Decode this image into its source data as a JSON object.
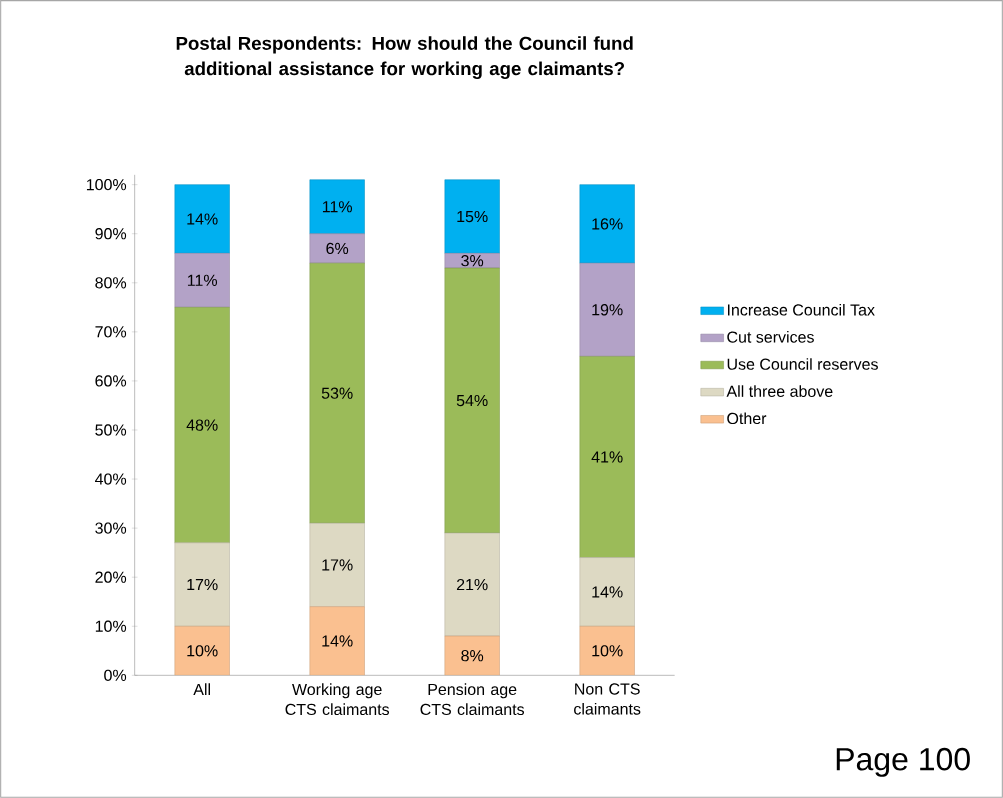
{
  "chart_data": {
    "type": "bar",
    "stacked": true,
    "title": "Postal Respondents: How should the Council fund additional assistance for working age  claimants?",
    "categories": [
      "All",
      "Working age CTS claimants",
      "Pension age CTS claimants",
      "Non CTS claimants"
    ],
    "series": [
      {
        "name": "Other",
        "color": "#fac090",
        "values": [
          10,
          14,
          8,
          10
        ],
        "value_labels": [
          "10%",
          "14%",
          "8%",
          "10%"
        ]
      },
      {
        "name": "All three above",
        "color": "#ddd9c3",
        "values": [
          17,
          17,
          21,
          14
        ],
        "value_labels": [
          "17%",
          "17%",
          "21%",
          "14%"
        ]
      },
      {
        "name": "Use Council reserves",
        "color": "#9bbb59",
        "values": [
          48,
          53,
          54,
          41
        ],
        "value_labels": [
          "48%",
          "53%",
          "54%",
          "41%"
        ]
      },
      {
        "name": "Cut services",
        "color": "#b3a2c7",
        "values": [
          11,
          6,
          3,
          19
        ],
        "value_labels": [
          "11%",
          "6%",
          "3%",
          "19%"
        ]
      },
      {
        "name": "Increase Council Tax",
        "color": "#00b0f0",
        "values": [
          14,
          11,
          15,
          16
        ],
        "value_labels": [
          "14%",
          "11%",
          "15%",
          "16%"
        ]
      }
    ],
    "ylim": [
      0,
      102
    ],
    "yticks": [
      {
        "value": 0,
        "label": "0%"
      },
      {
        "value": 10,
        "label": "10%"
      },
      {
        "value": 20,
        "label": "20%"
      },
      {
        "value": 30,
        "label": "30%"
      },
      {
        "value": 40,
        "label": "40%"
      },
      {
        "value": 50,
        "label": "50%"
      },
      {
        "value": 60,
        "label": "60%"
      },
      {
        "value": 70,
        "label": "70%"
      },
      {
        "value": 80,
        "label": "80%"
      },
      {
        "value": 90,
        "label": "90%"
      },
      {
        "value": 100,
        "label": "100%"
      }
    ],
    "legend": "right",
    "annotations": [
      "Page 100"
    ]
  }
}
